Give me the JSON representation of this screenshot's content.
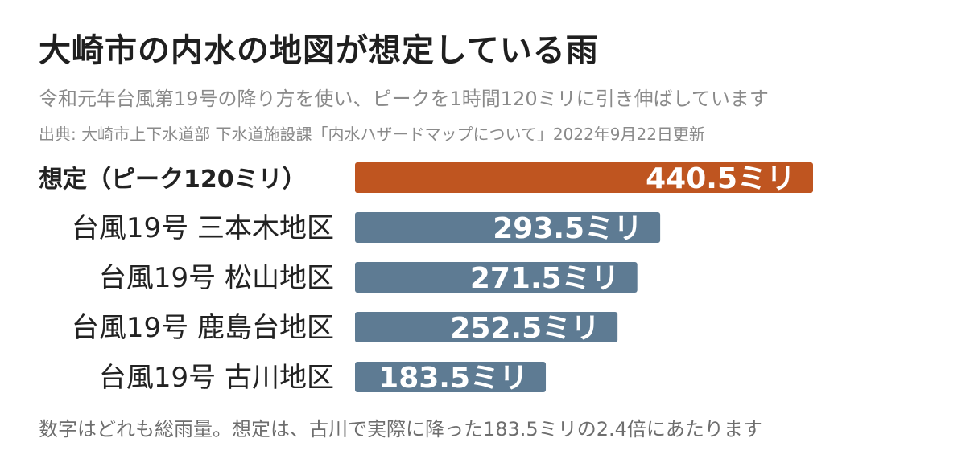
{
  "title": "大崎市の内水の地図が想定している雨",
  "subtitle": "令和元年台風第19号の降り方を使い、ピークを1時間120ミリに引き伸ばしています",
  "source": "出典: 大崎市上下水道部 下水道施設課「内水ハザードマップについて」2022年9月22日更新",
  "footnote": "数字はどれも総雨量。想定は、古川で実際に降った183.5ミリの2.4倍にあたります",
  "chart_data": {
    "type": "bar",
    "orientation": "horizontal",
    "categories": [
      "想定（ピーク120ミリ）",
      "台風19号 三本木地区",
      "台風19号 松山地区",
      "台風19号 鹿島台地区",
      "台風19号 古川地区"
    ],
    "values": [
      440.5,
      293.5,
      271.5,
      252.5,
      183.5
    ],
    "value_labels": [
      "440.5ミリ",
      "293.5ミリ",
      "271.5ミリ",
      "252.5ミリ",
      "183.5ミリ"
    ],
    "highlight_index": 0,
    "colors": {
      "highlight": "#bf5520",
      "default": "#5e7b93"
    },
    "xlim": [
      0,
      440.5
    ],
    "grid": false,
    "legend": "none"
  }
}
